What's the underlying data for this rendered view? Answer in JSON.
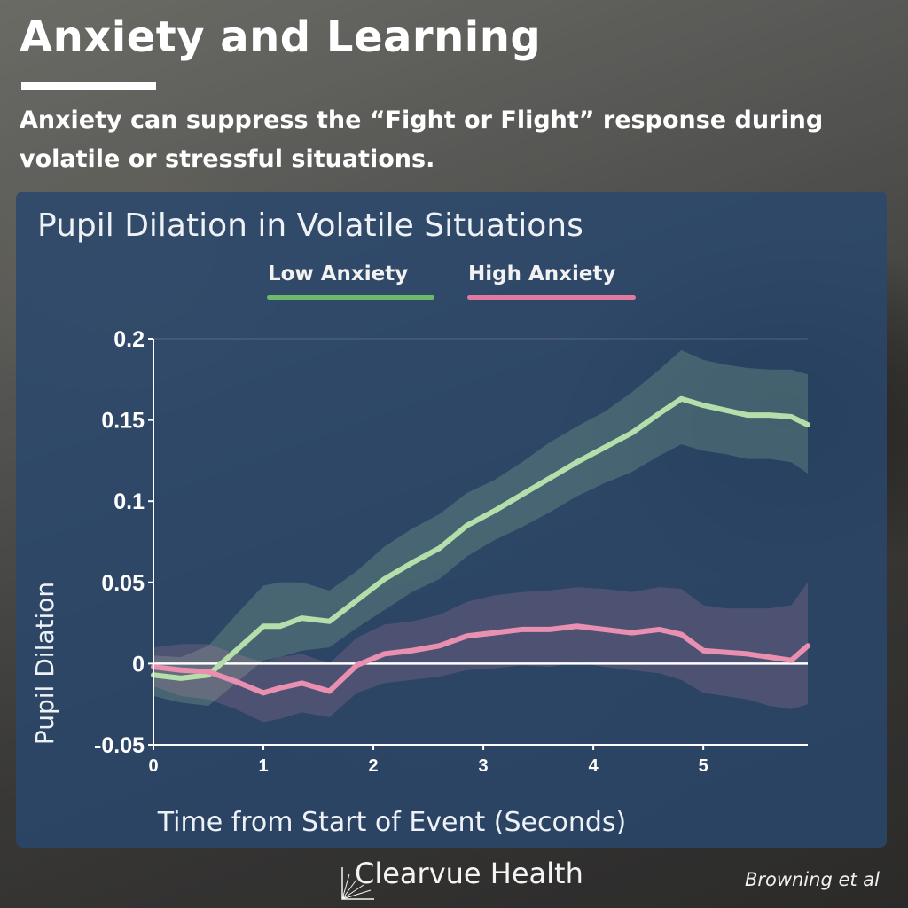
{
  "header": {
    "title": "Anxiety and Learning",
    "subtitle": "Anxiety can suppress the “Fight or Flight” response during volatile or stressful situations."
  },
  "footer": {
    "brand": "Clearvue Health",
    "citation": "Browning et al"
  },
  "chart_data": {
    "type": "line",
    "title": "Pupil Dilation in Volatile Situations",
    "xlabel": "Time from Start of Event (Seconds)",
    "ylabel": "Pupil Dilation",
    "xlim": [
      0,
      5.95
    ],
    "ylim": [
      -0.05,
      0.2
    ],
    "x_ticks": [
      "0",
      "1",
      "2",
      "3",
      "4",
      "5"
    ],
    "y_ticks": [
      "0.2",
      "0.15",
      "0.1",
      "0.05",
      "0",
      "-0.05"
    ],
    "grid": false,
    "legend_position": "top-center",
    "series": [
      {
        "name": "Low Anxiety",
        "color": "#b5dfaa",
        "legend_color": "#6dbb6a",
        "x": [
          0,
          0.25,
          0.5,
          0.75,
          1.0,
          1.15,
          1.35,
          1.6,
          1.85,
          2.1,
          2.35,
          2.6,
          2.85,
          3.1,
          3.35,
          3.6,
          3.85,
          4.1,
          4.35,
          4.6,
          4.8,
          5.0,
          5.2,
          5.4,
          5.6,
          5.8,
          5.95
        ],
        "values": [
          -0.007,
          -0.009,
          -0.007,
          0.008,
          0.023,
          0.023,
          0.028,
          0.026,
          0.039,
          0.052,
          0.062,
          0.071,
          0.085,
          0.094,
          0.104,
          0.114,
          0.124,
          0.133,
          0.142,
          0.154,
          0.163,
          0.159,
          0.156,
          0.153,
          0.153,
          0.152,
          0.147
        ],
        "band_lower": [
          -0.02,
          -0.024,
          -0.026,
          -0.012,
          0.002,
          0.004,
          0.008,
          0.01,
          0.022,
          0.033,
          0.044,
          0.052,
          0.066,
          0.076,
          0.084,
          0.093,
          0.103,
          0.111,
          0.118,
          0.128,
          0.135,
          0.131,
          0.129,
          0.126,
          0.126,
          0.124,
          0.117
        ],
        "band_upper": [
          0.005,
          0.004,
          0.011,
          0.03,
          0.048,
          0.05,
          0.05,
          0.045,
          0.057,
          0.072,
          0.083,
          0.092,
          0.105,
          0.113,
          0.124,
          0.136,
          0.146,
          0.155,
          0.167,
          0.181,
          0.193,
          0.187,
          0.184,
          0.182,
          0.181,
          0.181,
          0.178
        ]
      },
      {
        "name": "High Anxiety",
        "color": "#e98fb0",
        "legend_color": "#e27aa0",
        "x": [
          0,
          0.25,
          0.5,
          0.75,
          1.0,
          1.15,
          1.35,
          1.6,
          1.85,
          2.1,
          2.35,
          2.6,
          2.85,
          3.1,
          3.35,
          3.6,
          3.85,
          4.1,
          4.35,
          4.6,
          4.8,
          5.0,
          5.2,
          5.4,
          5.6,
          5.8,
          5.95
        ],
        "values": [
          -0.002,
          -0.004,
          -0.005,
          -0.011,
          -0.018,
          -0.015,
          -0.012,
          -0.017,
          -0.001,
          0.006,
          0.008,
          0.011,
          0.017,
          0.019,
          0.021,
          0.021,
          0.023,
          0.021,
          0.019,
          0.021,
          0.018,
          0.008,
          0.007,
          0.006,
          0.004,
          0.002,
          0.011
        ],
        "band_lower": [
          -0.014,
          -0.02,
          -0.022,
          -0.028,
          -0.036,
          -0.034,
          -0.03,
          -0.033,
          -0.018,
          -0.012,
          -0.01,
          -0.008,
          -0.004,
          -0.003,
          -0.001,
          -0.002,
          0.001,
          -0.002,
          -0.004,
          -0.006,
          -0.01,
          -0.018,
          -0.02,
          -0.022,
          -0.026,
          -0.028,
          -0.025
        ],
        "band_upper": [
          0.01,
          0.012,
          0.012,
          0.006,
          0.001,
          0.004,
          0.006,
          0.0,
          0.016,
          0.024,
          0.026,
          0.03,
          0.038,
          0.042,
          0.044,
          0.045,
          0.047,
          0.046,
          0.044,
          0.047,
          0.046,
          0.036,
          0.034,
          0.034,
          0.034,
          0.036,
          0.05
        ]
      }
    ]
  }
}
